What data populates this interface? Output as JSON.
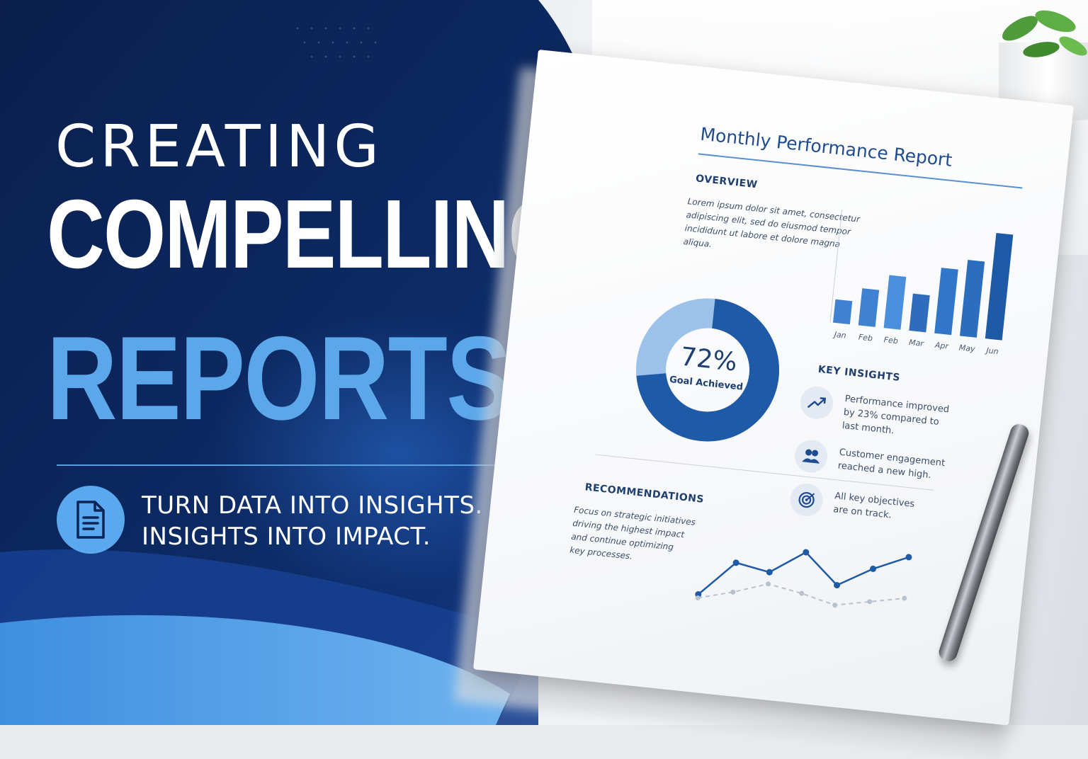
{
  "hero": {
    "line1": "CREATING",
    "line2": "COMPELLING",
    "line3": "REPORTS",
    "tagline_1": "TURN DATA INTO INSIGHTS.",
    "tagline_2": "INSIGHTS INTO IMPACT.",
    "badge_icon": "document-icon"
  },
  "colors": {
    "navy": "#0b2457",
    "accent_blue": "#5ba7ea",
    "report_blue": "#1f4c8f"
  },
  "report": {
    "title": "Monthly Performance Report",
    "overview_heading": "OVERVIEW",
    "overview_lines": [
      "Lorem ipsum dolor sit amet, consectetur",
      "adipiscing elit, sed do eiusmod tempor",
      "incididunt ut labore et dolore magna",
      "aliqua."
    ],
    "donut": {
      "value": "72%",
      "label": "Goal Achieved",
      "percent": 72
    },
    "insights_heading": "KEY INSIGHTS",
    "insights": [
      {
        "icon": "trend-up-icon",
        "lines": [
          "Performance improved",
          "by 23% compared to",
          "last month."
        ]
      },
      {
        "icon": "users-icon",
        "lines": [
          "Customer engagement",
          "reached a new high."
        ]
      },
      {
        "icon": "target-icon",
        "lines": [
          "All key objectives",
          "are on track."
        ]
      }
    ],
    "recommendations_heading": "RECOMMENDATIONS",
    "recommendations_lines": [
      "Focus on strategic initiatives",
      "driving the highest impact",
      "and continue optimizing",
      "key processes."
    ]
  },
  "chart_data": [
    {
      "type": "bar",
      "categories": [
        "Jan",
        "Feb",
        "Feb",
        "Mar",
        "Apr",
        "May",
        "Jun"
      ],
      "values": [
        22,
        35,
        50,
        35,
        62,
        72,
        100
      ],
      "ylim": [
        0,
        100
      ]
    },
    {
      "type": "line",
      "series": [
        {
          "values": [
            5,
            35,
            30,
            50,
            25,
            42,
            55
          ]
        },
        {
          "values": [
            2,
            10,
            20,
            15,
            8,
            14,
            20
          ]
        }
      ],
      "ylim": [
        0,
        60
      ]
    }
  ]
}
